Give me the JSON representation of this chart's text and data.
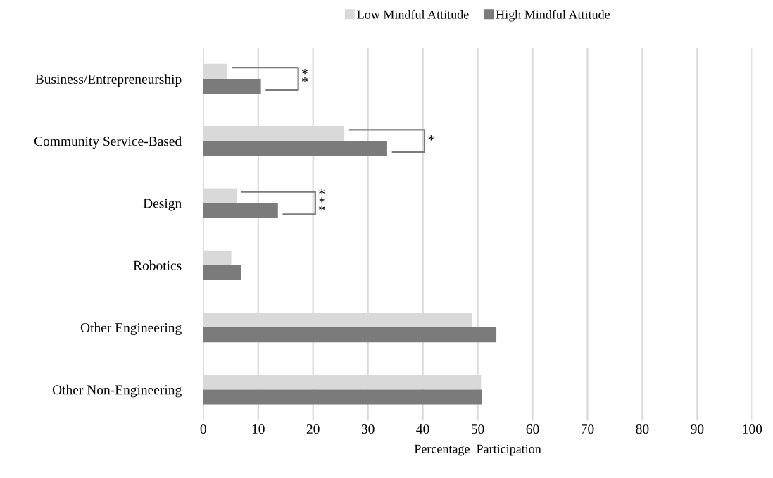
{
  "chart_data": {
    "type": "bar",
    "orientation": "horizontal",
    "xlabel": "Percentage  Participation",
    "categories": [
      "Business/Entrepreneurship",
      "Community Service-Based",
      "Design",
      "Robotics",
      "Other Engineering",
      "Other Non-Engineering"
    ],
    "series": [
      {
        "name": "Low Mindful Attitude",
        "color": "#d9d9d9",
        "values": [
          4.4,
          25.7,
          6.1,
          5.1,
          49.0,
          50.6
        ]
      },
      {
        "name": "High Mindful Attitude",
        "color": "#7b7b7b",
        "values": [
          10.5,
          33.5,
          13.6,
          6.9,
          53.4,
          50.8
        ]
      }
    ],
    "xlim": [
      0,
      100
    ],
    "xticks": [
      0,
      10,
      20,
      30,
      40,
      50,
      60,
      70,
      80,
      90,
      100
    ],
    "grid": "x",
    "legend": "top",
    "annotations": [
      "**",
      "*",
      "***"
    ]
  }
}
